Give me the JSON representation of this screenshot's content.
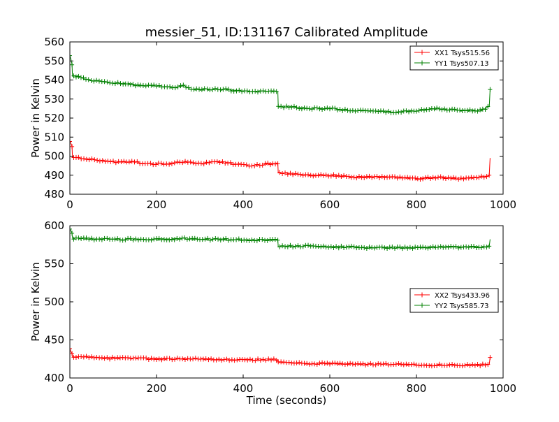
{
  "chart_data": [
    {
      "type": "line",
      "title": "messier_51, ID:131167 Calibrated Amplitude",
      "xlabel": "",
      "ylabel": "Power in Kelvin",
      "xlim": [
        0,
        1000
      ],
      "ylim": [
        480,
        560
      ],
      "xticks": [
        0,
        200,
        400,
        600,
        800,
        1000
      ],
      "yticks": [
        480,
        490,
        500,
        510,
        520,
        530,
        540,
        550,
        560
      ],
      "grid": false,
      "legend_position": "top-right",
      "series": [
        {
          "name": "XX1 Tsys515.56",
          "color": "#ff0000",
          "marker": "plus",
          "points": [
            [
              0,
              508
            ],
            [
              5,
              505
            ],
            [
              6,
              499
            ],
            [
              20,
              499
            ],
            [
              60,
              498
            ],
            [
              100,
              497
            ],
            [
              140,
              497
            ],
            [
              180,
              496
            ],
            [
              220,
              496
            ],
            [
              260,
              497
            ],
            [
              300,
              496
            ],
            [
              340,
              497
            ],
            [
              380,
              496
            ],
            [
              420,
              495
            ],
            [
              460,
              496
            ],
            [
              480,
              496
            ],
            [
              481,
              491
            ],
            [
              500,
              491
            ],
            [
              550,
              490
            ],
            [
              600,
              490
            ],
            [
              650,
              489
            ],
            [
              700,
              489
            ],
            [
              750,
              489
            ],
            [
              800,
              488
            ],
            [
              850,
              489
            ],
            [
              900,
              488
            ],
            [
              950,
              489
            ],
            [
              968,
              490
            ],
            [
              970,
              499
            ]
          ]
        },
        {
          "name": "YY1 Tsys507.13",
          "color": "#008000",
          "marker": "plus",
          "points": [
            [
              0,
              553
            ],
            [
              5,
              548
            ],
            [
              6,
              542
            ],
            [
              20,
              542
            ],
            [
              40,
              540
            ],
            [
              80,
              539
            ],
            [
              120,
              538
            ],
            [
              140,
              538
            ],
            [
              160,
              537
            ],
            [
              200,
              537
            ],
            [
              240,
              536
            ],
            [
              265,
              537
            ],
            [
              280,
              535
            ],
            [
              320,
              535
            ],
            [
              360,
              535
            ],
            [
              400,
              534
            ],
            [
              440,
              534
            ],
            [
              480,
              534
            ],
            [
              481,
              526
            ],
            [
              500,
              526
            ],
            [
              550,
              525
            ],
            [
              600,
              525
            ],
            [
              650,
              524
            ],
            [
              700,
              524
            ],
            [
              750,
              523
            ],
            [
              800,
              524
            ],
            [
              850,
              525
            ],
            [
              900,
              524
            ],
            [
              950,
              524
            ],
            [
              968,
              526
            ],
            [
              970,
              535
            ]
          ]
        }
      ]
    },
    {
      "type": "line",
      "title": "",
      "xlabel": "Time (seconds)",
      "ylabel": "Power in Kelvin",
      "xlim": [
        0,
        1000
      ],
      "ylim": [
        400,
        600
      ],
      "xticks": [
        0,
        200,
        400,
        600,
        800,
        1000
      ],
      "yticks": [
        400,
        450,
        500,
        550,
        600
      ],
      "grid": false,
      "legend_position": "center-right",
      "series": [
        {
          "name": "XX2 Tsys433.96",
          "color": "#ff0000",
          "marker": "plus",
          "points": [
            [
              0,
              438
            ],
            [
              5,
              432
            ],
            [
              6,
              428
            ],
            [
              20,
              428
            ],
            [
              80,
              426
            ],
            [
              140,
              426
            ],
            [
              200,
              425
            ],
            [
              260,
              425
            ],
            [
              320,
              425
            ],
            [
              380,
              424
            ],
            [
              440,
              424
            ],
            [
              480,
              424
            ],
            [
              481,
              420
            ],
            [
              500,
              420
            ],
            [
              550,
              419
            ],
            [
              600,
              419
            ],
            [
              650,
              418
            ],
            [
              700,
              418
            ],
            [
              750,
              418
            ],
            [
              800,
              417
            ],
            [
              850,
              417
            ],
            [
              900,
              417
            ],
            [
              950,
              417
            ],
            [
              968,
              418
            ],
            [
              970,
              427
            ]
          ]
        },
        {
          "name": "YY2 Tsys585.73",
          "color": "#008000",
          "marker": "plus",
          "points": [
            [
              0,
              595
            ],
            [
              5,
              590
            ],
            [
              6,
              583
            ],
            [
              20,
              583
            ],
            [
              80,
              582
            ],
            [
              140,
              582
            ],
            [
              200,
              582
            ],
            [
              265,
              583
            ],
            [
              300,
              582
            ],
            [
              360,
              582
            ],
            [
              420,
              581
            ],
            [
              480,
              581
            ],
            [
              481,
              573
            ],
            [
              500,
              573
            ],
            [
              550,
              573
            ],
            [
              600,
              572
            ],
            [
              650,
              572
            ],
            [
              700,
              571
            ],
            [
              750,
              571
            ],
            [
              800,
              571
            ],
            [
              850,
              572
            ],
            [
              900,
              572
            ],
            [
              950,
              572
            ],
            [
              968,
              573
            ],
            [
              970,
              582
            ]
          ]
        }
      ]
    }
  ]
}
